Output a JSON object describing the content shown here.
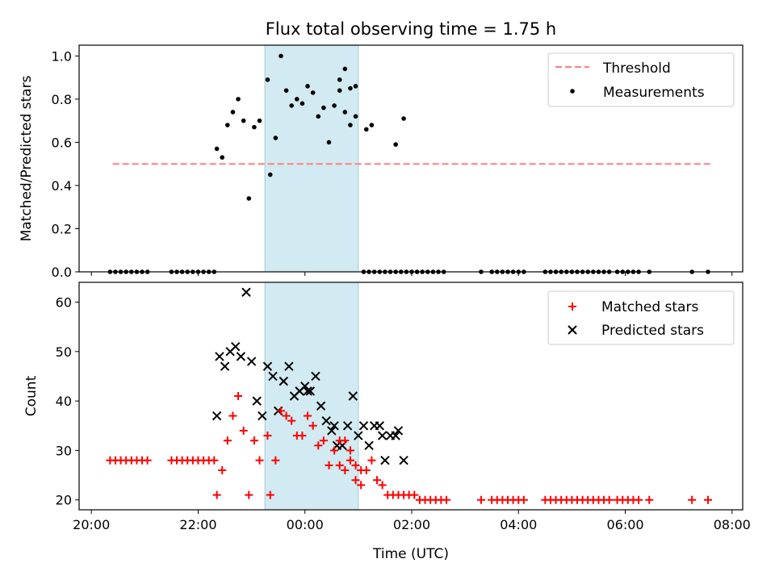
{
  "figure": {
    "title": "Flux total observing time = 1.75 h",
    "xlabel": "Time (UTC)",
    "xticks": [
      {
        "h": 20,
        "label": "20:00"
      },
      {
        "h": 22,
        "label": "22:00"
      },
      {
        "h": 24,
        "label": "00:00"
      },
      {
        "h": 26,
        "label": "02:00"
      },
      {
        "h": 28,
        "label": "04:00"
      },
      {
        "h": 30,
        "label": "06:00"
      },
      {
        "h": 32,
        "label": "08:00"
      }
    ],
    "xlim": [
      19.77,
      32.2
    ],
    "highlight_span": [
      23.25,
      25.0
    ],
    "colors": {
      "highlight": "#add8e6",
      "threshold": "#ff7f7f",
      "matched": "#ff0000",
      "predicted": "#000000",
      "measurement": "#000000"
    }
  },
  "chart_data": [
    {
      "type": "scatter",
      "ylabel": "Matched/Predicted stars",
      "ylim": [
        0,
        1.05
      ],
      "yticks": [
        "0.0",
        "0.2",
        "0.4",
        "0.6",
        "0.8",
        "1.0"
      ],
      "legend_position": "top-right",
      "threshold": {
        "name": "Threshold",
        "value": 0.5,
        "x_range": [
          20.4,
          31.65
        ]
      },
      "series": [
        {
          "name": "Measurements",
          "x": [
            20.35,
            20.45,
            20.55,
            20.65,
            20.75,
            20.85,
            20.95,
            21.05,
            21.5,
            21.6,
            21.7,
            21.8,
            21.9,
            22.0,
            22.1,
            22.2,
            22.3,
            22.35,
            22.45,
            22.55,
            22.65,
            22.75,
            22.85,
            22.95,
            23.05,
            23.15,
            23.3,
            23.35,
            23.45,
            23.55,
            23.65,
            23.75,
            23.85,
            23.95,
            24.05,
            24.15,
            24.25,
            24.35,
            24.45,
            24.55,
            24.65,
            24.75,
            24.85,
            24.95,
            25.1,
            25.2,
            25.3,
            25.4,
            25.5,
            25.6,
            25.7,
            25.8,
            25.9,
            26.0,
            26.1,
            26.2,
            26.3,
            26.4,
            26.5,
            26.6,
            27.3,
            27.5,
            27.6,
            27.7,
            27.8,
            27.9,
            28.0,
            28.1,
            28.5,
            28.6,
            28.7,
            28.8,
            28.9,
            29.0,
            29.1,
            29.2,
            29.3,
            29.4,
            29.5,
            29.6,
            29.7,
            29.85,
            29.95,
            30.05,
            30.15,
            30.25,
            30.45,
            31.25,
            31.55
          ],
          "y": [
            0,
            0,
            0,
            0,
            0,
            0,
            0,
            0,
            0,
            0,
            0,
            0,
            0,
            0,
            0,
            0,
            0,
            0.57,
            0.53,
            0.68,
            0.74,
            0.8,
            0.7,
            0.34,
            0.67,
            0.7,
            0.89,
            0.45,
            0.62,
            1.0,
            0.84,
            0.77,
            0.8,
            0.78,
            0.86,
            0.83,
            0.72,
            0.76,
            0.6,
            0.77,
            0.89,
            0.94,
            0.85,
            0.86,
            0,
            0,
            0,
            0,
            0,
            0,
            0,
            0,
            0,
            0,
            0,
            0,
            0,
            0,
            0,
            0,
            0,
            0,
            0,
            0,
            0,
            0,
            0,
            0,
            0,
            0,
            0,
            0,
            0,
            0,
            0,
            0,
            0,
            0,
            0,
            0,
            0,
            0,
            0,
            0,
            0,
            0,
            0,
            0,
            0
          ],
          "note_tail": {
            "x": [
              24.65,
              24.75,
              24.85,
              24.95,
              25.15,
              25.25
            ],
            "y": [
              0.84,
              0.74,
              0.68,
              0.72,
              0.66,
              0.68
            ]
          },
          "late": {
            "x": [
              25.7,
              25.85
            ],
            "y": [
              0.59,
              0.71
            ]
          }
        }
      ]
    },
    {
      "type": "scatter",
      "ylabel": "Count",
      "ylim": [
        18,
        64
      ],
      "yticks": [
        "20",
        "30",
        "40",
        "50",
        "60"
      ],
      "legend_position": "top-right",
      "series": [
        {
          "name": "Matched stars",
          "x": [
            20.35,
            20.45,
            20.55,
            20.65,
            20.75,
            20.85,
            20.95,
            21.05,
            21.5,
            21.6,
            21.7,
            21.8,
            21.9,
            22.0,
            22.1,
            22.2,
            22.3,
            22.35,
            22.45,
            22.55,
            22.65,
            22.75,
            22.85,
            22.95,
            23.05,
            23.15,
            23.3,
            23.35,
            23.45,
            23.55,
            23.65,
            23.75,
            23.85,
            23.95,
            24.05,
            24.15,
            24.25,
            24.35,
            24.45,
            24.55,
            24.65,
            24.75,
            24.85,
            24.95,
            25.05,
            25.15,
            25.25,
            25.35,
            25.45,
            25.55,
            25.65,
            25.75,
            25.85,
            25.95,
            26.05,
            26.15,
            26.25,
            26.35,
            26.45,
            26.55,
            26.65,
            27.3,
            27.5,
            27.6,
            27.7,
            27.8,
            27.9,
            28.0,
            28.1,
            28.5,
            28.6,
            28.7,
            28.8,
            28.9,
            29.0,
            29.1,
            29.2,
            29.3,
            29.4,
            29.5,
            29.6,
            29.7,
            29.85,
            29.95,
            30.05,
            30.15,
            30.25,
            30.45,
            31.25,
            31.55
          ],
          "y": [
            28,
            28,
            28,
            28,
            28,
            28,
            28,
            28,
            28,
            28,
            28,
            28,
            28,
            28,
            28,
            28,
            28,
            21,
            26,
            32,
            37,
            41,
            34,
            21,
            32,
            28,
            33,
            21,
            28,
            38,
            37,
            36,
            33,
            33,
            37,
            35,
            31,
            32,
            27,
            30,
            32,
            32,
            30,
            27,
            26,
            26,
            28,
            24,
            23,
            21,
            21,
            21,
            21,
            21,
            21,
            20,
            20,
            20,
            20,
            20,
            20,
            20,
            20,
            20,
            20,
            20,
            20,
            20,
            20,
            20,
            20,
            20,
            20,
            20,
            20,
            20,
            20,
            20,
            20,
            20,
            20,
            20,
            20,
            20,
            20,
            20,
            20,
            20,
            20,
            20
          ],
          "extra": {
            "x": [
              24.65,
              24.75,
              24.85,
              24.95,
              25.05
            ],
            "y": [
              27,
              26,
              28,
              24,
              23
            ]
          }
        },
        {
          "name": "Predicted stars",
          "x": [
            22.35,
            22.4,
            22.5,
            22.6,
            22.7,
            22.8,
            22.9,
            23.0,
            23.1,
            23.2,
            23.3,
            23.4,
            23.5,
            23.6,
            23.7,
            23.8,
            23.9,
            24.0,
            24.05,
            24.1,
            24.2,
            24.3,
            24.4,
            24.5,
            24.55,
            24.6,
            24.7,
            24.8,
            24.9,
            25.0,
            25.1,
            25.2,
            25.3,
            25.4,
            25.45,
            25.5,
            25.6,
            25.7,
            25.75,
            25.85
          ],
          "y": [
            37,
            49,
            47,
            50,
            51,
            49,
            62,
            48,
            40,
            37,
            47,
            45,
            38,
            44,
            47,
            41,
            42,
            43,
            42,
            42,
            45,
            39,
            36,
            34,
            35,
            31,
            31,
            35,
            41,
            33,
            35,
            31,
            35,
            35,
            33,
            28,
            33,
            33,
            34,
            28
          ]
        }
      ]
    }
  ]
}
